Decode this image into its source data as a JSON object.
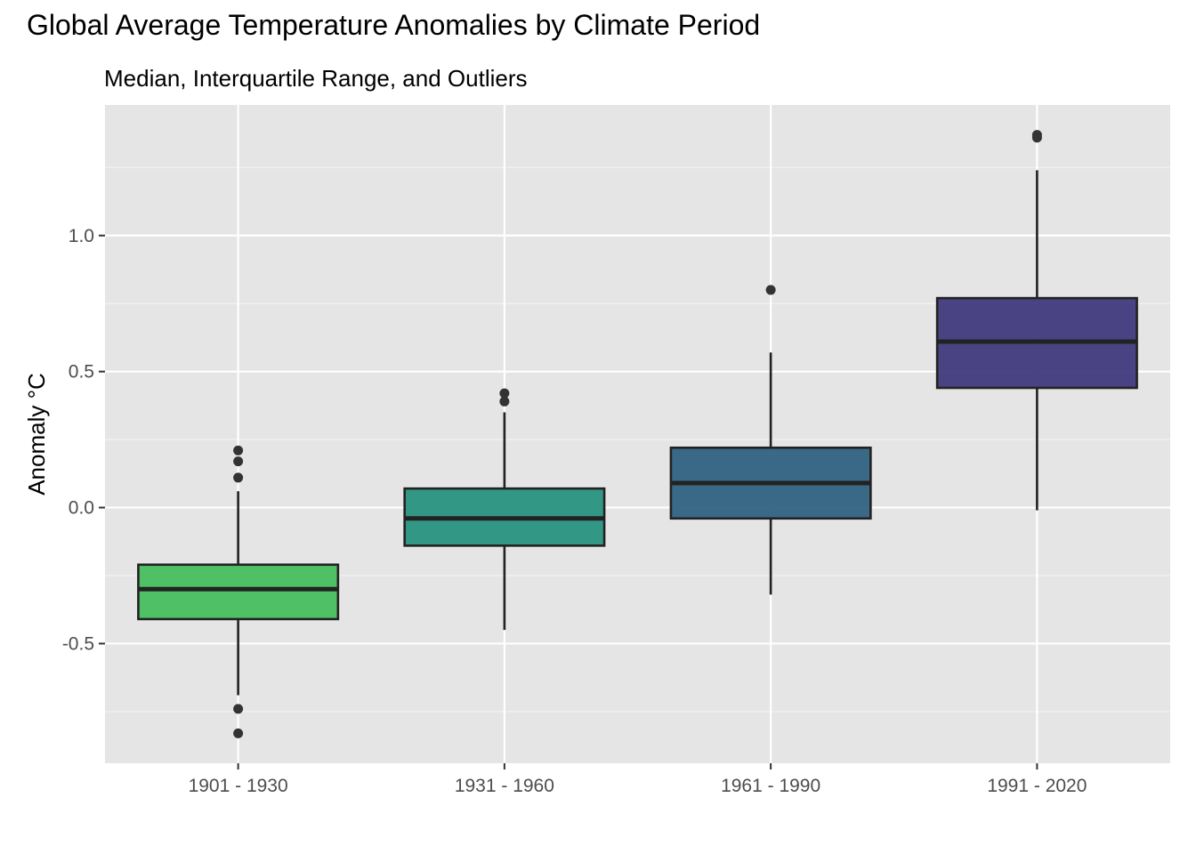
{
  "chart_data": {
    "type": "boxplot",
    "title": "Global Average Temperature Anomalies by Climate Period",
    "subtitle": "Median, Interquartile Range, and Outliers",
    "xlabel": "",
    "ylabel": "Anomaly °C",
    "ylim": [
      -0.94,
      1.48
    ],
    "yticks": [
      -0.5,
      0.0,
      0.5,
      1.0
    ],
    "ytick_labels": [
      "-0.5",
      "0.0",
      "0.5",
      "1.0"
    ],
    "grid": true,
    "panel_color": "#e5e5e5",
    "categories": [
      "1901 - 1930",
      "1931 - 1960",
      "1961 - 1990",
      "1991 - 2020"
    ],
    "boxes": [
      {
        "category": "1901 - 1930",
        "whisker_low": -0.69,
        "q1": -0.41,
        "median": -0.3,
        "q3": -0.21,
        "whisker_high": 0.06,
        "outliers": [
          0.21,
          0.17,
          0.11,
          -0.74,
          -0.83
        ],
        "color": "#47be5f"
      },
      {
        "category": "1931 - 1960",
        "whisker_low": -0.45,
        "q1": -0.14,
        "median": -0.04,
        "q3": 0.07,
        "whisker_high": 0.35,
        "outliers": [
          0.42,
          0.39
        ],
        "color": "#28927f"
      },
      {
        "category": "1961 - 1990",
        "whisker_low": -0.32,
        "q1": -0.04,
        "median": 0.09,
        "q3": 0.22,
        "whisker_high": 0.57,
        "outliers": [
          0.8
        ],
        "color": "#2f6282"
      },
      {
        "category": "1991 - 2020",
        "whisker_low": -0.01,
        "q1": 0.44,
        "median": 0.61,
        "q3": 0.77,
        "whisker_high": 1.24,
        "outliers": [
          1.37,
          1.36
        ],
        "color": "#413a7d"
      }
    ]
  }
}
